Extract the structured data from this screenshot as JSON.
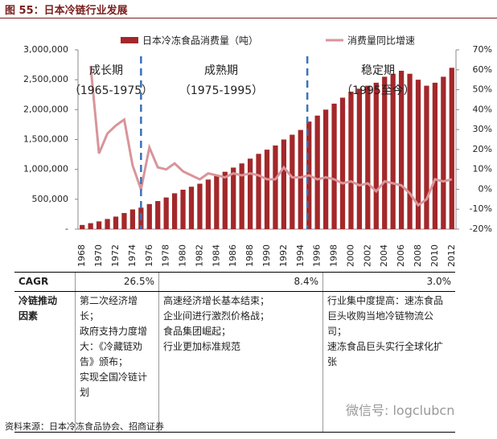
{
  "title": "图 55：日本冷链行业发展",
  "chart_data": {
    "type": "combo",
    "categories": [
      "1968",
      null,
      "1970",
      null,
      "1972",
      null,
      "1974",
      null,
      "1976",
      null,
      "1978",
      null,
      "1980",
      null,
      "1982",
      null,
      "1984",
      null,
      "1986",
      null,
      "1988",
      null,
      "1990",
      null,
      "1992",
      null,
      "1994",
      null,
      "1996",
      null,
      "1998",
      null,
      "2000",
      null,
      "2002",
      null,
      "2004",
      null,
      "2006",
      null,
      "2008",
      null,
      "2010",
      null,
      "2012"
    ],
    "series": [
      {
        "name": "日本冷冻食品消费量（吨）",
        "type": "bar",
        "color": "#a3282a",
        "values": [
          70000,
          100000,
          130000,
          170000,
          210000,
          270000,
          330000,
          360000,
          420000,
          470000,
          530000,
          600000,
          660000,
          710000,
          760000,
          830000,
          900000,
          960000,
          1030000,
          1100000,
          1180000,
          1260000,
          1330000,
          1400000,
          1500000,
          1580000,
          1660000,
          1800000,
          1900000,
          2000000,
          2100000,
          2200000,
          2300000,
          2350000,
          2400000,
          2450000,
          2550000,
          2600000,
          2650000,
          2600000,
          2500000,
          2400000,
          2450000,
          2550000,
          2700000
        ]
      },
      {
        "name": "消费量同比增速",
        "type": "line",
        "axis": "y2",
        "color": "#d8959a",
        "values": [
          null,
          62,
          18,
          28,
          32,
          35,
          12,
          0,
          21,
          11,
          10,
          13,
          9,
          7,
          5,
          8,
          7,
          6,
          8,
          7,
          8,
          7,
          5,
          5,
          11,
          6,
          6,
          7,
          5,
          6,
          5,
          3,
          4,
          2,
          3,
          -1,
          4,
          3,
          2,
          -2,
          -8,
          -5,
          5,
          4,
          5
        ]
      }
    ],
    "ylim": [
      0,
      3000000
    ],
    "yticks": [
      {
        "value": 0,
        "label": "-"
      },
      {
        "value": 500000,
        "label": "500,000"
      },
      {
        "value": 1000000,
        "label": "1,000,000"
      },
      {
        "value": 1500000,
        "label": "1,500,000"
      },
      {
        "value": 2000000,
        "label": "2,000,000"
      },
      {
        "value": 2500000,
        "label": "2,500,000"
      },
      {
        "value": 3000000,
        "label": "3,000,000"
      }
    ],
    "y2lim": [
      -20,
      70
    ],
    "y2ticks": [
      {
        "value": -20,
        "label": "-20%"
      },
      {
        "value": -10,
        "label": "-10%"
      },
      {
        "value": 0,
        "label": "0%"
      },
      {
        "value": 10,
        "label": "10%"
      },
      {
        "value": 20,
        "label": "20%"
      },
      {
        "value": 30,
        "label": "30%"
      },
      {
        "value": 40,
        "label": "40%"
      },
      {
        "value": 50,
        "label": "50%"
      },
      {
        "value": 60,
        "label": "60%"
      },
      {
        "value": 70,
        "label": "70%"
      }
    ],
    "annotations": [
      "成长期",
      "（1965-1975）",
      "成熟期",
      "（1975-1995）",
      "稳定期",
      "（1995至今）"
    ]
  },
  "table": {
    "rows": [
      [
        "CAGR",
        "26.5%",
        "8.4%",
        "3.0%"
      ],
      [
        "冷链推动因素",
        [
          "第二次经济增长；",
          "政府支持力度增大：《冷藏链劝告》颁布；",
          "实现全国冷链计划"
        ],
        [
          "高速经济增长基本结束；",
          "企业间进行激烈价格战；",
          "食品集团崛起；",
          "行业更加标准规范"
        ],
        [
          "行业集中度提高：速冻食品巨头收购当地冷链物流公司；",
          "速冻食品巨头实行全球化扩张"
        ]
      ]
    ]
  },
  "watermark": "微信号: logclubcn",
  "source": "资料来源：日本冷冻食品协会、招商证券"
}
